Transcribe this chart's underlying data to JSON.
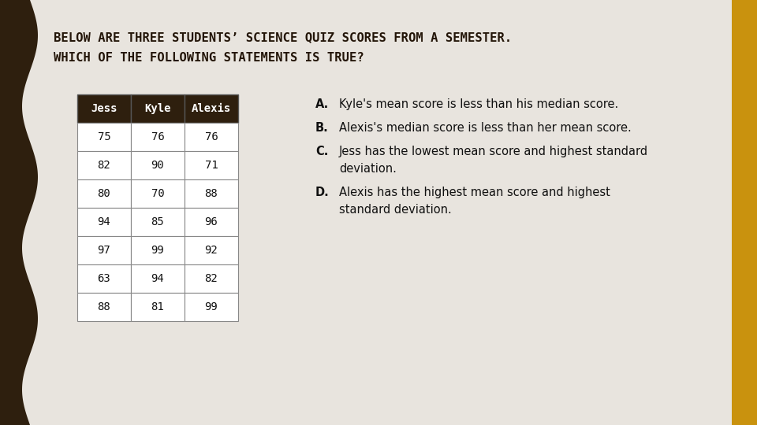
{
  "title_line1": "BELOW ARE THREE STUDENTS’ SCIENCE QUIZ SCORES FROM A SEMESTER.",
  "title_line2": "WHICH OF THE FOLLOWING STATEMENTS IS TRUE?",
  "bg_color": "#e8e4de",
  "left_bar_color": "#2e1f0e",
  "right_bar_color": "#c9920e",
  "title_color": "#231508",
  "table_headers": [
    "Jess",
    "Kyle",
    "Alexis"
  ],
  "table_data": [
    [
      75,
      76,
      76
    ],
    [
      82,
      90,
      71
    ],
    [
      80,
      70,
      88
    ],
    [
      94,
      85,
      96
    ],
    [
      97,
      99,
      92
    ],
    [
      63,
      94,
      82
    ],
    [
      88,
      81,
      99
    ]
  ],
  "header_bg": "#2e1f0e",
  "header_fg": "#ffffff",
  "cell_bg": "#ffffff",
  "cell_fg": "#111111",
  "answers": [
    [
      "A.",
      "Kyle's mean score is less than his median score."
    ],
    [
      "B.",
      "Alexis's median score is less than her mean score."
    ],
    [
      "C.",
      "Jess has the lowest mean score and highest standard\ndeviation."
    ],
    [
      "D.",
      "Alexis has the highest mean score and highest\nstandard deviation."
    ]
  ]
}
